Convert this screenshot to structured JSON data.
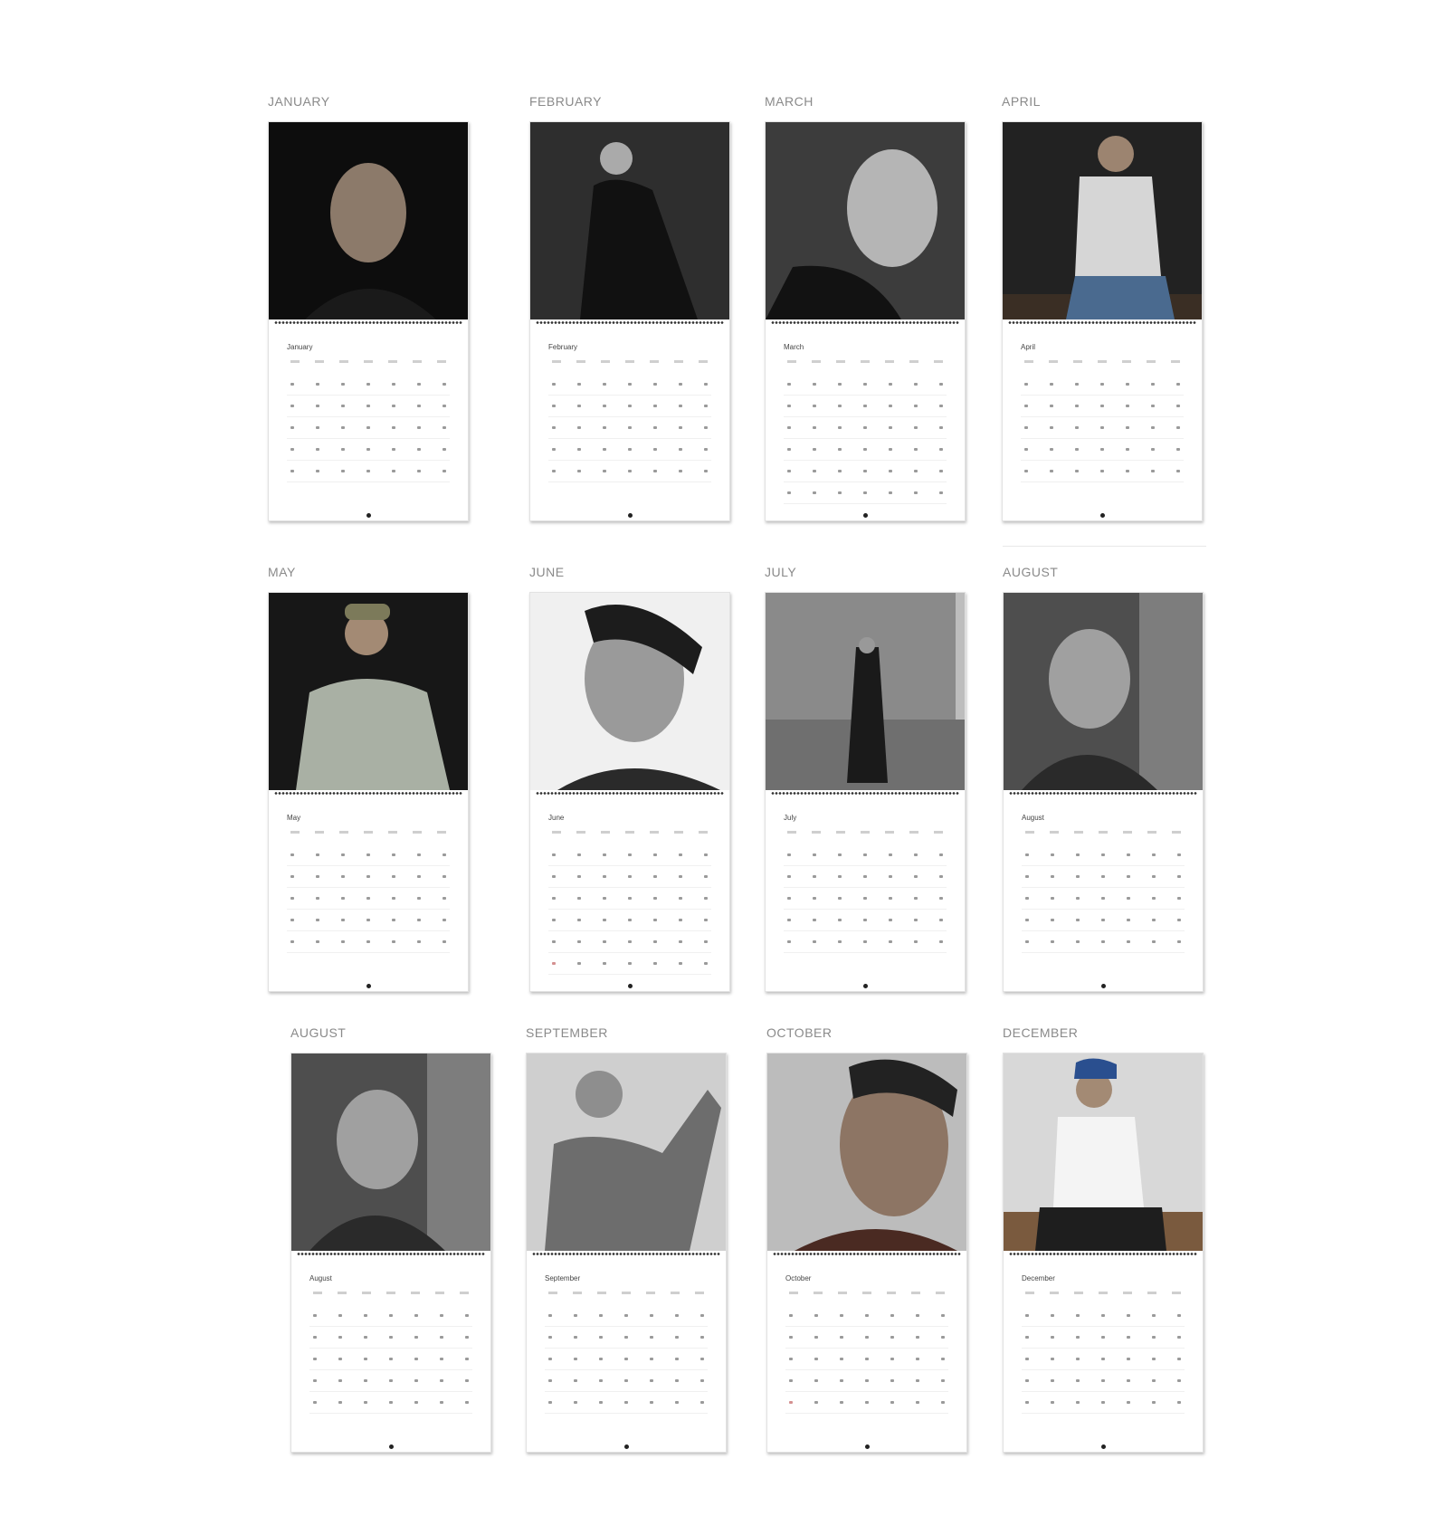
{
  "calendar_pages": [
    {
      "label": "JANUARY",
      "mini_title": "January"
    },
    {
      "label": "FEBRUARY",
      "mini_title": "February"
    },
    {
      "label": "MARCH",
      "mini_title": "March"
    },
    {
      "label": "APRIL",
      "mini_title": "April"
    },
    {
      "label": "MAY",
      "mini_title": "May"
    },
    {
      "label": "JUNE",
      "mini_title": "June"
    },
    {
      "label": "JULY",
      "mini_title": "July"
    },
    {
      "label": "AUGUST",
      "mini_title": "August"
    },
    {
      "label": "AUGUST",
      "mini_title": "August"
    },
    {
      "label": "SEPTEMBER",
      "mini_title": "September"
    },
    {
      "label": "OCTOBER",
      "mini_title": "October"
    },
    {
      "label": "DECEMBER",
      "mini_title": "December"
    }
  ],
  "photo_tones": [
    "#141414",
    "#2b2b2b",
    "#3a3a3a",
    "#262626",
    "#1c1c1c",
    "#e9e9e9",
    "#8a8a8a",
    "#5a5a5a",
    "#5a5a5a",
    "#bdbdbd",
    "#7a6a5e",
    "#cfcfcf"
  ],
  "colors": {
    "label": "#8a8a8a",
    "binding": "#333333"
  }
}
